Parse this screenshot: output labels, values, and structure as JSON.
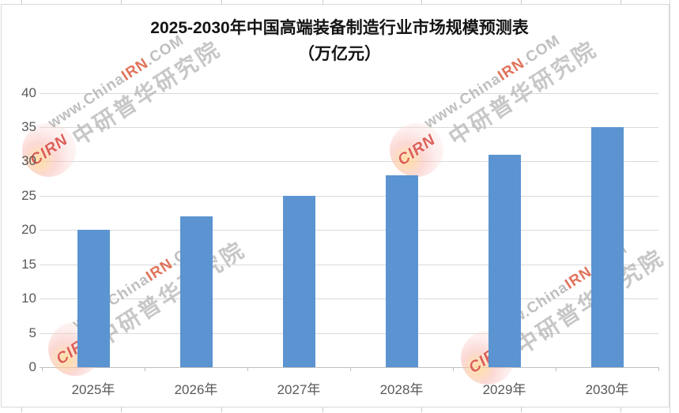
{
  "chart_data": {
    "type": "bar",
    "title_line1": "2025-2030年中国高端装备制造行业市场规模预测表",
    "title_line2": "（万亿元）",
    "categories": [
      "2025年",
      "2026年",
      "2027年",
      "2028年",
      "2029年",
      "2030年"
    ],
    "values": [
      20,
      22,
      25,
      28,
      31,
      35
    ],
    "ylabel": "",
    "xlabel": "",
    "ylim": [
      0,
      40
    ],
    "yticks": [
      0,
      5,
      10,
      15,
      20,
      25,
      30,
      35,
      40
    ],
    "grid": true,
    "legend_position": "none",
    "bar_color": "#5B94D0",
    "gridline_color": "#D9D9D9",
    "axis_line_color": "#BFBFBF",
    "tick_label_color": "#595959"
  },
  "watermark": {
    "logo_text": "CIRN",
    "url_prefix": "www.China",
    "url_accent": "IRN",
    "url_suffix": ".COM",
    "org_name": "中研普华研究院",
    "accent_color": "#DB5C3E",
    "gray_color": "#B0B0B0"
  }
}
